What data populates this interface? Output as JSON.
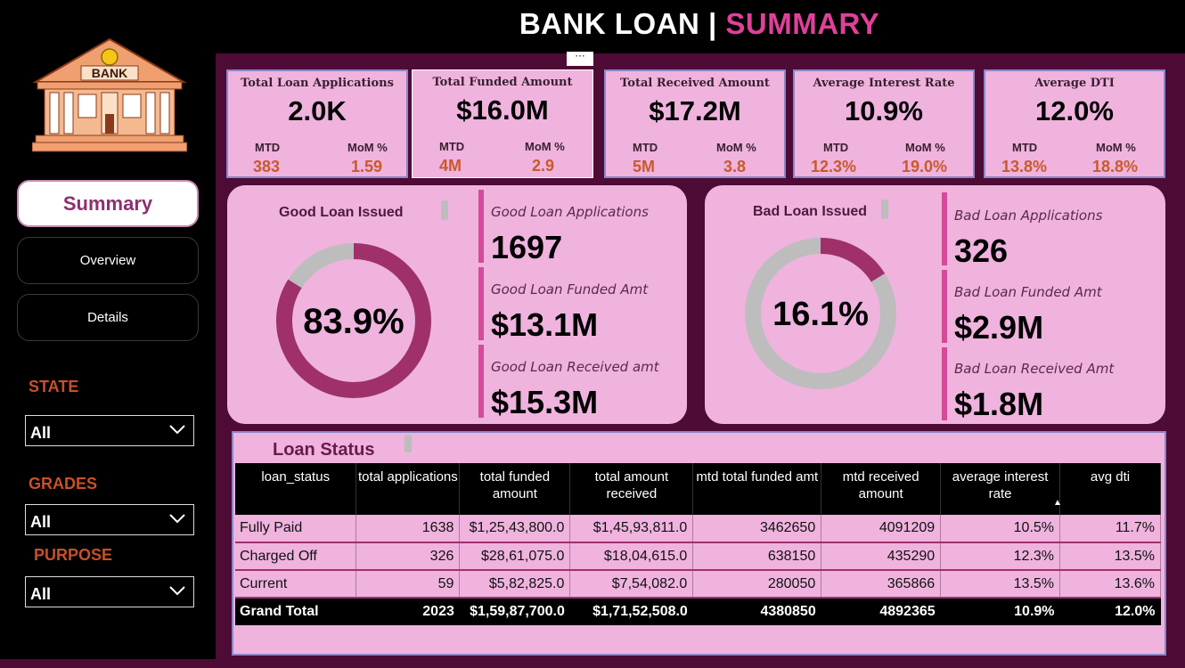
{
  "header": {
    "title_main": "BANK LOAN",
    "title_sep": "|",
    "title_accent": "SUMMARY"
  },
  "sidebar": {
    "logo_text": "BANK",
    "nav": [
      {
        "label": "Summary",
        "active": true
      },
      {
        "label": "Overview",
        "active": false
      },
      {
        "label": "Details",
        "active": false
      }
    ],
    "filters": [
      {
        "label": "STATE",
        "value": "All"
      },
      {
        "label": "GRADES",
        "value": "All"
      },
      {
        "label": "PURPOSE",
        "value": "All"
      }
    ]
  },
  "kpis": [
    {
      "title": "Total Loan Applications",
      "value": "2.0K",
      "mtd_label": "MTD",
      "mtd": "383",
      "mom_label": "MoM %",
      "mom": "1.59"
    },
    {
      "title": "Total Funded Amount",
      "value": "$16.0M",
      "mtd_label": "MTD",
      "mtd": "4M",
      "mom_label": "MoM %",
      "mom": "2.9"
    },
    {
      "title": "Total Received Amount",
      "value": "$17.2M",
      "mtd_label": "MTD",
      "mtd": "5M",
      "mom_label": "MoM %",
      "mom": "3.8"
    },
    {
      "title": "Average Interest Rate",
      "value": "10.9%",
      "mtd_label": "MTD",
      "mtd": "12.3%",
      "mom_label": "MoM %",
      "mom": "19.0%"
    },
    {
      "title": "Average DTI",
      "value": "12.0%",
      "mtd_label": "MTD",
      "mtd": "13.8%",
      "mom_label": "MoM %",
      "mom": "18.8%"
    }
  ],
  "good_loan": {
    "title": "Good Loan Issued",
    "percent_label": "83.9%",
    "percent": 83.9,
    "stats": [
      {
        "label": "Good Loan Applications",
        "value": "1697"
      },
      {
        "label": "Good Loan Funded Amt",
        "value": "$13.1M"
      },
      {
        "label": "Good Loan Received amt",
        "value": "$15.3M"
      }
    ]
  },
  "bad_loan": {
    "title": "Bad Loan Issued",
    "percent_label": "16.1%",
    "percent": 16.1,
    "stats": [
      {
        "label": "Bad Loan Applications",
        "value": "326"
      },
      {
        "label": "Bad Loan Funded Amt",
        "value": "$2.9M"
      },
      {
        "label": "Bad Loan Received Amt",
        "value": "$1.8M"
      }
    ]
  },
  "loan_status": {
    "title": "Loan Status",
    "columns": [
      "loan_status",
      "total applications",
      "total funded amount",
      "total amount received",
      "mtd total funded amt",
      "mtd received amount",
      "average interest rate",
      "avg dti"
    ],
    "rows": [
      [
        "Fully Paid",
        "1638",
        "$1,25,43,800.0",
        "$1,45,93,811.0",
        "3462650",
        "4091209",
        "10.5%",
        "11.7%"
      ],
      [
        "Charged Off",
        "326",
        "$28,61,075.0",
        "$18,04,615.0",
        "638150",
        "435290",
        "12.3%",
        "13.5%"
      ],
      [
        "Current",
        "59",
        "$5,82,825.0",
        "$7,54,082.0",
        "280050",
        "365866",
        "13.5%",
        "13.6%"
      ]
    ],
    "total": [
      "Grand Total",
      "2023",
      "$1,59,87,700.0",
      "$1,71,52,508.0",
      "4380850",
      "4892365",
      "10.9%",
      "12.0%"
    ]
  },
  "colors": {
    "accent": "#e0409a",
    "panel": "#efb3de",
    "ring_good": "#a0306a",
    "ring_rest": "#bdbdbd",
    "background": "#4d0b35"
  }
}
